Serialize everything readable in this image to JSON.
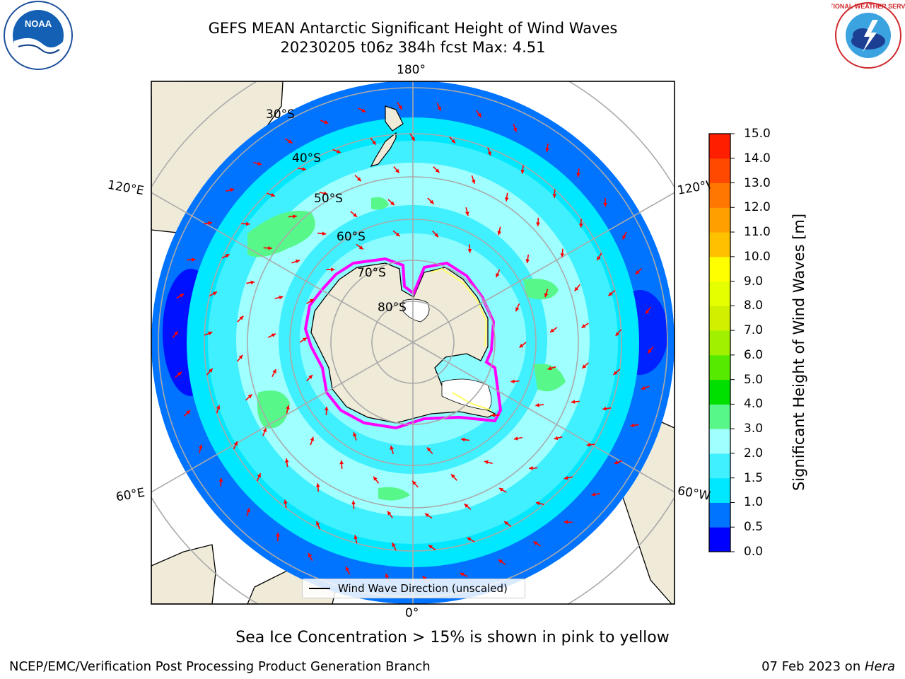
{
  "title": {
    "line1": "GEFS MEAN Antarctic Significant Height of Wind Waves",
    "line2": "20230205 t06z 384h fcst   Max: 4.51"
  },
  "map": {
    "projection": "south polar stereographic",
    "lat_labels": [
      "30°S",
      "40°S",
      "50°S",
      "60°S",
      "70°S",
      "80°S"
    ],
    "lon_labels": {
      "top": "180°",
      "bottom": "0°",
      "upper_left": "120°E",
      "upper_right": "120°W",
      "lower_left": "60°E",
      "lower_right": "60°W"
    },
    "legend": "Wind Wave Direction (unscaled)",
    "vector_color": "#ff0000",
    "land_color": "#efebd8",
    "ice_colors": [
      "#ff00ff",
      "#ffff66"
    ]
  },
  "colorbar": {
    "title": "Significant Height of Wind Waves [m]",
    "ticks": [
      "0.0",
      "0.5",
      "1.0",
      "1.5",
      "2.0",
      "3.0",
      "4.0",
      "5.0",
      "6.0",
      "7.0",
      "8.0",
      "9.0",
      "10.0",
      "11.0",
      "12.0",
      "13.0",
      "14.0",
      "15.0"
    ],
    "colors": [
      "#0000ff",
      "#0073ff",
      "#00e8ff",
      "#40f0ff",
      "#a0ffff",
      "#58f78a",
      "#00e000",
      "#55ea00",
      "#a0f000",
      "#d0f000",
      "#e5ff00",
      "#ffff00",
      "#ffc000",
      "#ffa000",
      "#ff7700",
      "#ff4800",
      "#ff1e00"
    ]
  },
  "footer": {
    "note": "Sea Ice Concentration > 15% is shown in pink to yellow",
    "left": "NCEP/EMC/Verification Post Processing Product Generation Branch",
    "date": "07 Feb 2023 on ",
    "host": "Hera"
  },
  "logos": {
    "noaa": "NOAA",
    "nws": "NATIONAL WEATHER SERVICE"
  }
}
